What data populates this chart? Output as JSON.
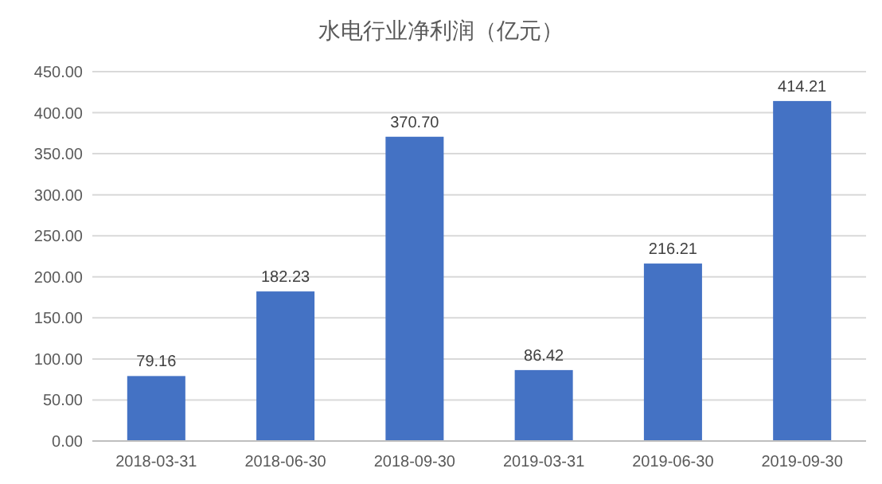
{
  "chart_data": {
    "type": "bar",
    "title": "水电行业净利润（亿元）",
    "categories": [
      "2018-03-31",
      "2018-06-30",
      "2018-09-30",
      "2019-03-31",
      "2019-06-30",
      "2019-09-30"
    ],
    "values": [
      79.16,
      182.23,
      370.7,
      86.42,
      216.21,
      414.21
    ],
    "value_labels": [
      "79.16",
      "182.23",
      "370.70",
      "86.42",
      "216.21",
      "414.21"
    ],
    "color": "#4472c4",
    "ylim": [
      0,
      450
    ],
    "yticks": [
      {
        "value": 0,
        "label": "0.00"
      },
      {
        "value": 50,
        "label": "50.00"
      },
      {
        "value": 100,
        "label": "100.00"
      },
      {
        "value": 150,
        "label": "150.00"
      },
      {
        "value": 200,
        "label": "200.00"
      },
      {
        "value": 250,
        "label": "250.00"
      },
      {
        "value": 300,
        "label": "300.00"
      },
      {
        "value": 350,
        "label": "350.00"
      },
      {
        "value": 400,
        "label": "400.00"
      },
      {
        "value": 450,
        "label": "450.00"
      }
    ],
    "grid": "y"
  }
}
